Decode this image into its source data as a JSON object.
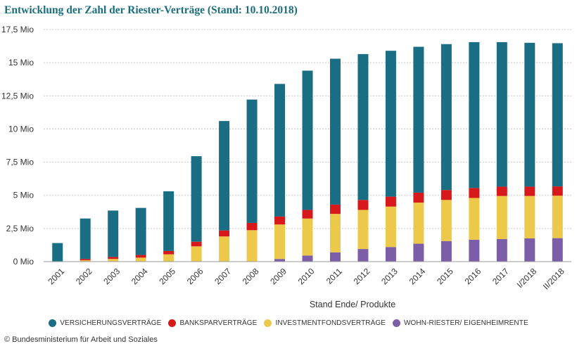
{
  "title": "Entwicklung der Zahl der Riester-Verträge (Stand: 10.10.2018)",
  "credit": "© Bundesministerium für Arbeit und Soziales",
  "chart_data": {
    "type": "bar",
    "stacked": true,
    "title": "Entwicklung der Zahl der Riester-Verträge (Stand: 10.10.2018)",
    "xlabel": "Stand Ende/ Produkte",
    "ylabel": "",
    "ylim": [
      0,
      17.5
    ],
    "yticks": [
      0,
      2.5,
      5,
      7.5,
      10,
      12.5,
      15,
      17.5
    ],
    "ytick_labels": [
      "0 Mio",
      "2,5 Mio",
      "5 Mio",
      "7,5 Mio",
      "10 Mio",
      "12,5 Mio",
      "15 Mio",
      "17,5 Mio"
    ],
    "grid": true,
    "legend_position": "bottom",
    "categories": [
      "2001",
      "2002",
      "2003",
      "2004",
      "2005",
      "2006",
      "2007",
      "2008",
      "2009",
      "2010",
      "2011",
      "2012",
      "2013",
      "2014",
      "2015",
      "2016",
      "2017",
      "I/2018",
      "II/2018"
    ],
    "series": [
      {
        "name": "WOHN-RIESTER/ EIGENHEIMRENTE",
        "color": "#7b5ea7",
        "values": [
          0,
          0,
          0,
          0,
          0,
          0,
          0,
          0.02,
          0.2,
          0.45,
          0.7,
          0.95,
          1.1,
          1.35,
          1.55,
          1.65,
          1.7,
          1.75,
          1.77
        ]
      },
      {
        "name": "INVESTMENTFONDSVERTRÄGE",
        "color": "#ecc94b",
        "values": [
          0,
          0.1,
          0.2,
          0.3,
          0.55,
          1.15,
          1.9,
          2.35,
          2.6,
          2.8,
          2.9,
          2.95,
          3.05,
          3.1,
          3.1,
          3.15,
          3.25,
          3.2,
          3.2
        ]
      },
      {
        "name": "BANKSPARVERTRÄGE",
        "color": "#d7191c",
        "values": [
          0,
          0.1,
          0.15,
          0.2,
          0.25,
          0.35,
          0.45,
          0.55,
          0.6,
          0.65,
          0.7,
          0.75,
          0.75,
          0.75,
          0.75,
          0.75,
          0.7,
          0.7,
          0.7
        ]
      },
      {
        "name": "VERSICHERUNGSVERTRÄGE",
        "color": "#1a6e84",
        "values": [
          1.4,
          3.05,
          3.5,
          3.55,
          4.5,
          6.45,
          8.25,
          9.3,
          10.0,
          10.5,
          11.0,
          11.0,
          11.0,
          11.0,
          11.0,
          11.0,
          10.9,
          10.85,
          10.8
        ]
      }
    ]
  },
  "legend_items": [
    {
      "label": "VERSICHERUNGSVERTRÄGE",
      "color": "#1a6e84"
    },
    {
      "label": "BANKSPARVERTRÄGE",
      "color": "#d7191c"
    },
    {
      "label": "INVESTMENTFONDSVERTRÄGE",
      "color": "#ecc94b"
    },
    {
      "label": "WOHN-RIESTER/ EIGENHEIMRENTE",
      "color": "#7b5ea7"
    }
  ]
}
